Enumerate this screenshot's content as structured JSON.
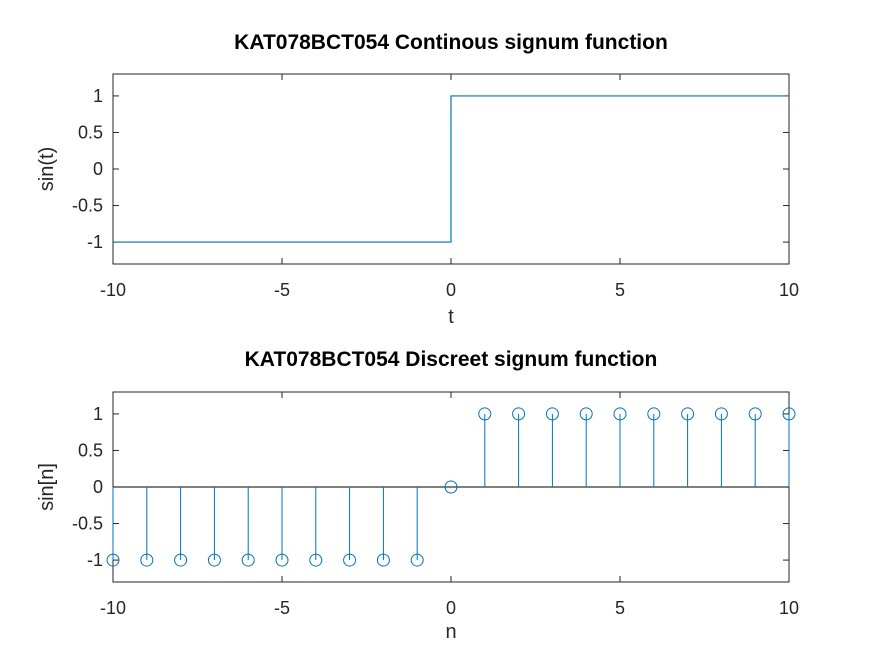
{
  "chart_data": [
    {
      "type": "line",
      "title": "KAT078BCT054 Continous signum function",
      "xlabel": "t",
      "ylabel": "sin(t)",
      "xlim": [
        -10,
        10
      ],
      "ylim": [
        -1.3,
        1.3
      ],
      "xticks": [
        -10,
        -5,
        0,
        5,
        10
      ],
      "xtick_labels": [
        "-10",
        "-5",
        "0",
        "5",
        "10"
      ],
      "yticks": [
        1,
        0.5,
        0,
        -0.5,
        -1
      ],
      "ytick_labels": [
        "1",
        "0.5",
        "0",
        "-0.5",
        "-1"
      ],
      "grid": false,
      "color": "#0072BD",
      "series": [
        {
          "x": [
            -10,
            0,
            0,
            10
          ],
          "y": [
            -1,
            -1,
            1,
            1
          ]
        }
      ]
    },
    {
      "type": "stem",
      "title": "KAT078BCT054 Discreet signum function",
      "xlabel": "n",
      "ylabel": "sin[n]",
      "xlim": [
        -10,
        10
      ],
      "ylim": [
        -1.3,
        1.3
      ],
      "xticks": [
        -10,
        -5,
        0,
        5,
        10
      ],
      "xtick_labels": [
        "-10",
        "-5",
        "0",
        "5",
        "10"
      ],
      "yticks": [
        1,
        0.5,
        0,
        -0.5,
        -1
      ],
      "ytick_labels": [
        "1",
        "0.5",
        "0",
        "-0.5",
        "-1"
      ],
      "grid": false,
      "color": "#0072BD",
      "series": [
        {
          "x": [
            -10,
            -9,
            -8,
            -7,
            -6,
            -5,
            -4,
            -3,
            -2,
            -1,
            0,
            1,
            2,
            3,
            4,
            5,
            6,
            7,
            8,
            9,
            10
          ],
          "y": [
            -1,
            -1,
            -1,
            -1,
            -1,
            -1,
            -1,
            -1,
            -1,
            -1,
            0,
            1,
            1,
            1,
            1,
            1,
            1,
            1,
            1,
            1,
            1
          ]
        }
      ]
    }
  ]
}
